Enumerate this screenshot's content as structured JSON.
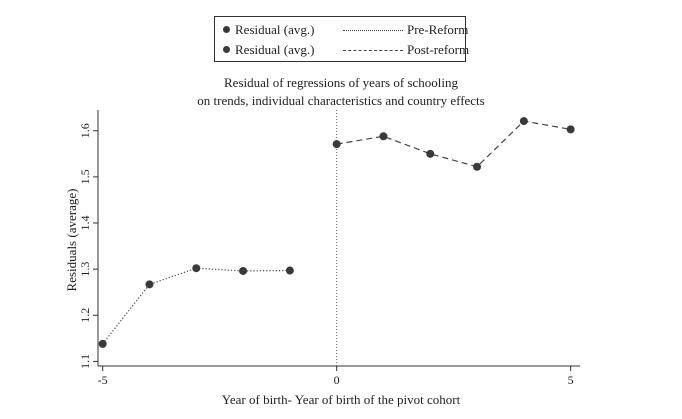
{
  "chart_data": {
    "type": "line",
    "title": "Residual of regressions of years of schooling",
    "subtitle": "on trends, individual characteristics and country effects",
    "xlabel": "Year of birth- Year of birth of the pivot cohort",
    "ylabel": "Residuals (average)",
    "xlim": [
      -5.1,
      5.2
    ],
    "ylim": [
      1.09,
      1.645
    ],
    "xticks": [
      -5,
      0,
      5
    ],
    "yticks": [
      1.1,
      1.2,
      1.3,
      1.4,
      1.5,
      1.6
    ],
    "ytick_labels": [
      "1.1",
      "1.2",
      "1.3",
      "1.4",
      "1.5",
      "1.6"
    ],
    "xtick_labels": [
      "-5",
      "0",
      "5"
    ],
    "reference_line_x": 0,
    "grid": false,
    "legend_position": "top-center",
    "series": [
      {
        "name": "Pre-Reform",
        "marker_label": "Residual (avg.)",
        "line_style": "dotted",
        "x": [
          -5,
          -4,
          -3,
          -2,
          -1
        ],
        "values": [
          1.138,
          1.267,
          1.302,
          1.296,
          1.297
        ]
      },
      {
        "name": "Post-reform",
        "marker_label": "Residual (avg.)",
        "line_style": "dashed",
        "x": [
          0,
          1,
          2,
          3,
          4,
          5
        ],
        "values": [
          1.571,
          1.588,
          1.55,
          1.522,
          1.621,
          1.603
        ]
      }
    ],
    "colors": {
      "marker": "#3a3a3a",
      "line": "#444444",
      "axis": "#333333"
    }
  }
}
